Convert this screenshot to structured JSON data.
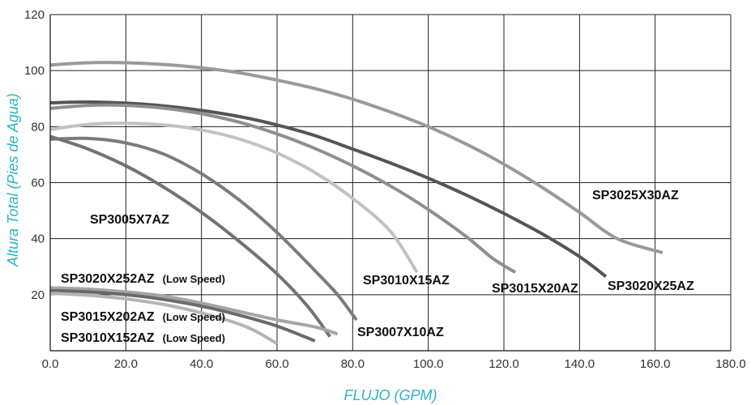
{
  "chart_data": {
    "type": "line",
    "title": "",
    "xlabel": "FLUJO (GPM)",
    "ylabel": "Altura Total (Pies de Agua)",
    "xlim": [
      0,
      180
    ],
    "ylim": [
      0,
      120
    ],
    "xticks": [
      "0.0",
      "20.0",
      "40.0",
      "60.0",
      "80.0",
      "100.0",
      "120.0",
      "140.0",
      "160.0",
      "180.0"
    ],
    "yticks": [
      "20",
      "40",
      "60",
      "80",
      "100",
      "120"
    ],
    "grid": true,
    "series": [
      {
        "name": "SP3025X30AZ",
        "color": "#9a9a9a",
        "points": [
          [
            0,
            102
          ],
          [
            10,
            102.8
          ],
          [
            20,
            102.8
          ],
          [
            30,
            102.2
          ],
          [
            40,
            101
          ],
          [
            50,
            99.2
          ],
          [
            60,
            96.6
          ],
          [
            70,
            93.6
          ],
          [
            80,
            89.8
          ],
          [
            90,
            85.2
          ],
          [
            100,
            80
          ],
          [
            110,
            73.8
          ],
          [
            120,
            66.6
          ],
          [
            130,
            58.4
          ],
          [
            140,
            49.4
          ],
          [
            150,
            40
          ],
          [
            162,
            35
          ]
        ]
      },
      {
        "name": "SP3020X25AZ",
        "color": "#555555",
        "points": [
          [
            0,
            88.5
          ],
          [
            10,
            88.8
          ],
          [
            20,
            88.4
          ],
          [
            30,
            87.4
          ],
          [
            40,
            85.8
          ],
          [
            50,
            83.6
          ],
          [
            60,
            80.6
          ],
          [
            70,
            76.8
          ],
          [
            80,
            72
          ],
          [
            90,
            67
          ],
          [
            100,
            61.6
          ],
          [
            110,
            55.6
          ],
          [
            120,
            49
          ],
          [
            130,
            41.8
          ],
          [
            140,
            33.6
          ],
          [
            147,
            26.5
          ]
        ]
      },
      {
        "name": "SP3015X20AZ",
        "color": "#8f8f8f",
        "points": [
          [
            0,
            86.5
          ],
          [
            10,
            87.6
          ],
          [
            20,
            87.6
          ],
          [
            30,
            86.6
          ],
          [
            40,
            84.6
          ],
          [
            50,
            81.6
          ],
          [
            60,
            77.4
          ],
          [
            70,
            72.2
          ],
          [
            80,
            66
          ],
          [
            90,
            58.8
          ],
          [
            100,
            50.4
          ],
          [
            110,
            40.8
          ],
          [
            117,
            33
          ],
          [
            123,
            28
          ]
        ]
      },
      {
        "name": "SP3010X15AZ",
        "color": "#c2c2c2",
        "points": [
          [
            0,
            79
          ],
          [
            10,
            80.8
          ],
          [
            20,
            81.2
          ],
          [
            30,
            80.6
          ],
          [
            40,
            78.8
          ],
          [
            50,
            75.6
          ],
          [
            60,
            70.6
          ],
          [
            70,
            63.6
          ],
          [
            80,
            54.4
          ],
          [
            90,
            42.6
          ],
          [
            97,
            28
          ]
        ]
      },
      {
        "name": "SP3007X10AZ",
        "color": "#7c7c7c",
        "points": [
          [
            0,
            75.5
          ],
          [
            10,
            75.8
          ],
          [
            20,
            74.2
          ],
          [
            30,
            70.2
          ],
          [
            40,
            63.2
          ],
          [
            50,
            53.8
          ],
          [
            60,
            42.2
          ],
          [
            70,
            28.6
          ],
          [
            76,
            20
          ],
          [
            81,
            11
          ]
        ]
      },
      {
        "name": "SP3005X7AZ",
        "color": "#737373",
        "points": [
          [
            0,
            76.5
          ],
          [
            10,
            72
          ],
          [
            20,
            66
          ],
          [
            30,
            58.4
          ],
          [
            40,
            49.4
          ],
          [
            50,
            39
          ],
          [
            60,
            27.4
          ],
          [
            68,
            16
          ],
          [
            74,
            5
          ]
        ]
      },
      {
        "name": "SP3020X252AZ (Low Speed)",
        "color": "#a5a5a5",
        "points": [
          [
            0,
            22.5
          ],
          [
            10,
            22
          ],
          [
            20,
            21
          ],
          [
            30,
            19.5
          ],
          [
            40,
            17
          ],
          [
            50,
            14
          ],
          [
            60,
            11
          ],
          [
            70,
            8.5
          ],
          [
            76,
            6
          ]
        ]
      },
      {
        "name": "SP3015X202AZ (Low Speed)",
        "color": "#6a6a6a",
        "points": [
          [
            0,
            21.5
          ],
          [
            10,
            21
          ],
          [
            20,
            20
          ],
          [
            30,
            18.3
          ],
          [
            40,
            15.9
          ],
          [
            50,
            12.7
          ],
          [
            60,
            8.8
          ],
          [
            70,
            3.5
          ]
        ]
      },
      {
        "name": "SP3010X152AZ (Low Speed)",
        "color": "#b5b5b5",
        "points": [
          [
            0,
            20.5
          ],
          [
            10,
            19.8
          ],
          [
            20,
            18.5
          ],
          [
            30,
            16.5
          ],
          [
            40,
            13.5
          ],
          [
            50,
            9.5
          ],
          [
            55,
            6.5
          ],
          [
            60,
            2.5
          ]
        ]
      }
    ],
    "labels": [
      {
        "text": "SP3025X30AZ",
        "suffix": ""
      },
      {
        "text": "SP3020X25AZ",
        "suffix": ""
      },
      {
        "text": "SP3015X20AZ",
        "suffix": ""
      },
      {
        "text": "SP3010X15AZ",
        "suffix": ""
      },
      {
        "text": "SP3007X10AZ",
        "suffix": ""
      },
      {
        "text": "SP3005X7AZ",
        "suffix": ""
      },
      {
        "text": "SP3020X252AZ",
        "suffix": "(Low Speed)"
      },
      {
        "text": "SP3015X202AZ",
        "suffix": "(Low Speed)"
      },
      {
        "text": "SP3010X152AZ",
        "suffix": "(Low Speed)"
      }
    ]
  }
}
